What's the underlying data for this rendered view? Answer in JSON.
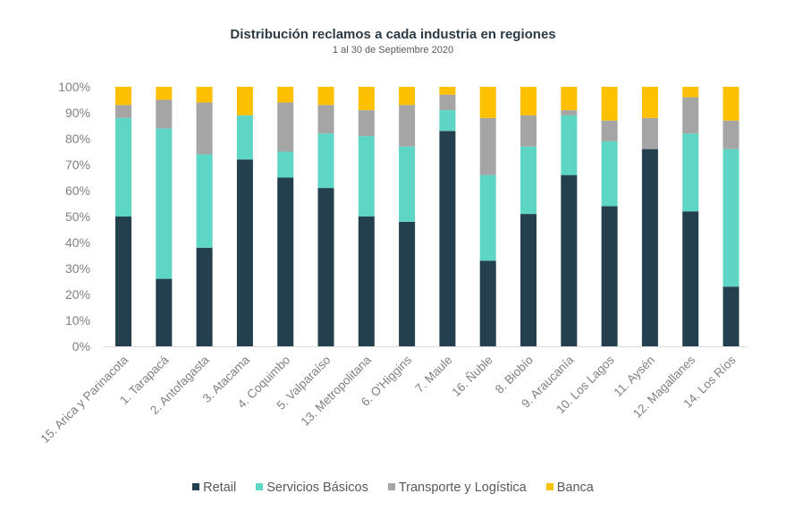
{
  "chart_data": {
    "type": "bar",
    "stacked": true,
    "percent_stacked": true,
    "title": "Distribución reclamos a cada industria en regiones",
    "subtitle": "1  al 30  de Septiembre 2020",
    "xlabel": "",
    "ylabel": "",
    "ylim": [
      0,
      100
    ],
    "yticks": [
      "0%",
      "10%",
      "20%",
      "30%",
      "40%",
      "50%",
      "60%",
      "70%",
      "80%",
      "90%",
      "100%"
    ],
    "grid": false,
    "legend_position": "bottom",
    "categories": [
      "15. Arica y Parinacota",
      "1. Tarapacá",
      "2. Antofagasta",
      "3. Atacama",
      "4. Coquimbo",
      "5. Valparaíso",
      "13. Metropolitana",
      "6. O'Higgins",
      "7. Maule",
      "16. Ñuble",
      "8. Biobío",
      "9. Araucanía",
      "10. Los Lagos",
      "11. Aysén",
      "12. Magallanes",
      "14. Los Ríos"
    ],
    "series": [
      {
        "name": "Retail",
        "color": "#243f4d",
        "values": [
          50,
          26,
          38,
          72,
          65,
          61,
          50,
          48,
          83,
          33,
          51,
          66,
          54,
          76,
          52,
          23
        ]
      },
      {
        "name": "Servicios Básicos",
        "color": "#5dd6c6",
        "values": [
          38,
          58,
          36,
          17,
          10,
          21,
          31,
          29,
          8,
          33,
          26,
          23,
          25,
          0,
          30,
          53
        ]
      },
      {
        "name": "Transporte y Logística",
        "color": "#a5a5a5",
        "values": [
          5,
          11,
          20,
          0,
          19,
          11,
          10,
          16,
          6,
          22,
          12,
          2,
          8,
          12,
          14,
          11
        ]
      },
      {
        "name": "Banca",
        "color": "#ffc000",
        "values": [
          7,
          5,
          6,
          11,
          6,
          7,
          9,
          7,
          3,
          12,
          11,
          9,
          13,
          12,
          4,
          13
        ]
      }
    ]
  }
}
